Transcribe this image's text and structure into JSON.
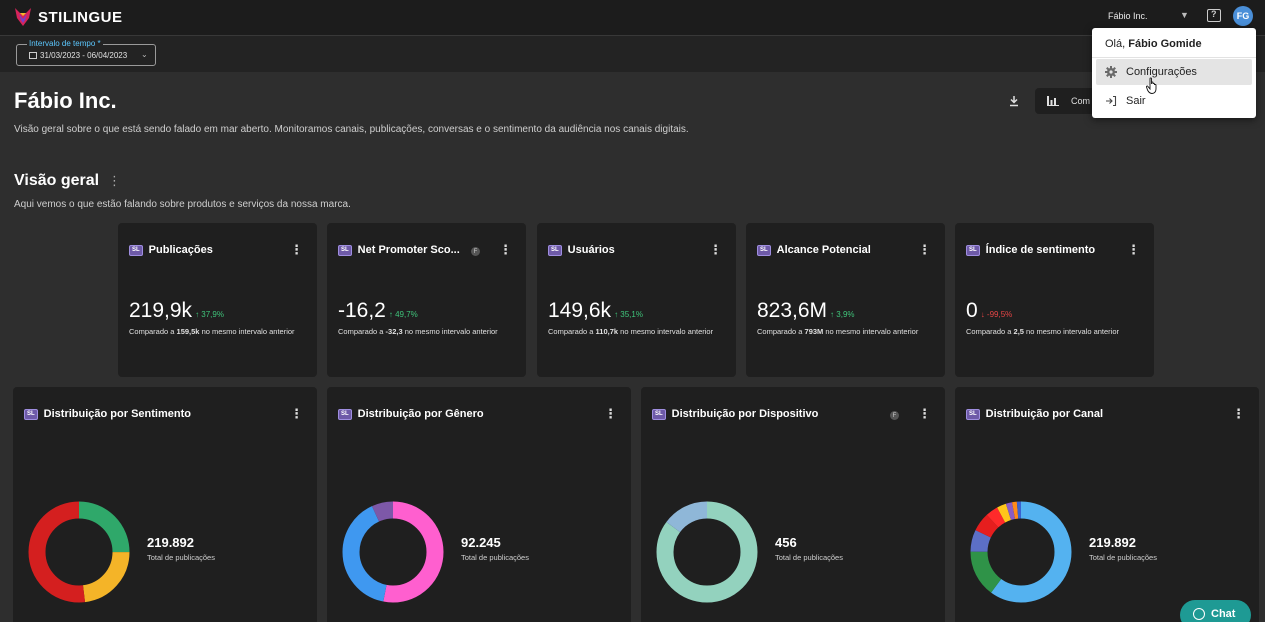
{
  "header": {
    "brand": "STILINGUE",
    "org_selector": "Fábio Inc.",
    "avatar_initials": "FG",
    "avatar_color": "#4a8fd8"
  },
  "filters": {
    "date_label": "Intervalo de tempo *",
    "date_value": "31/03/2023 - 06/04/2023"
  },
  "page": {
    "title": "Fábio Inc.",
    "description": "Visão geral sobre o que está sendo falado em mar aberto. Monitoramos canais, publicações, conversas e o sentimento da audiência nos canais digitais.",
    "compare_label": "Com"
  },
  "section": {
    "title": "Visão geral",
    "description": "Aqui vemos o que estão falando sobre produtos e serviços da nossa marca."
  },
  "badge_text": "SL",
  "f_badge_text": "F",
  "kpis": [
    {
      "title": "Publicações",
      "value": "219,9k",
      "delta": "↑ 37,9%",
      "direction": "up",
      "comp_prefix": "Comparado a ",
      "comp_value": "159,5k",
      "comp_suffix": " no mesmo intervalo anterior"
    },
    {
      "title": "Net Promoter Sco...",
      "value": "-16,2",
      "delta": "↑ 49,7%",
      "direction": "up",
      "comp_prefix": "Comparado a ",
      "comp_value": "-32,3",
      "comp_suffix": " no mesmo intervalo anterior"
    },
    {
      "title": "Usuários",
      "value": "149,6k",
      "delta": "↑ 35,1%",
      "direction": "up",
      "comp_prefix": "Comparado a ",
      "comp_value": "110,7k",
      "comp_suffix": " no mesmo intervalo anterior"
    },
    {
      "title": "Alcance Potencial",
      "value": "823,6M",
      "delta": "↑ 3,9%",
      "direction": "up",
      "comp_prefix": "Comparado a ",
      "comp_value": "793M",
      "comp_suffix": " no mesmo intervalo anterior"
    },
    {
      "title": "Índice de sentimento",
      "value": "0",
      "delta": "↓ -99,5%",
      "direction": "down",
      "comp_prefix": "Comparado a ",
      "comp_value": "2,5",
      "comp_suffix": " no mesmo intervalo anterior"
    }
  ],
  "distributions": [
    {
      "title": "Distribuição por Sentimento",
      "total": "219.892",
      "caption": "Total de publicações",
      "segments": [
        {
          "share": 0.25,
          "color": "#2fa86a"
        },
        {
          "share": 0.23,
          "color": "#f4b428"
        },
        {
          "share": 0.52,
          "color": "#d41f1f"
        }
      ]
    },
    {
      "title": "Distribuição por Gênero",
      "total": "92.245",
      "caption": "Total de publicações",
      "segments": [
        {
          "share": 0.53,
          "color": "#ff5fcf"
        },
        {
          "share": 0.4,
          "color": "#3f98f0"
        },
        {
          "share": 0.07,
          "color": "#7d58a8"
        }
      ]
    },
    {
      "title": "Distribuição por Dispositivo",
      "total": "456",
      "caption": "Total de publicações",
      "segments": [
        {
          "share": 0.85,
          "color": "#93d2be"
        },
        {
          "share": 0.15,
          "color": "#8fb7d8"
        }
      ]
    },
    {
      "title": "Distribuição por Canal",
      "total": "219.892",
      "caption": "Total de publicações",
      "segments": [
        {
          "share": 0.6,
          "color": "#54b2f0"
        },
        {
          "share": 0.15,
          "color": "#2f9348"
        },
        {
          "share": 0.07,
          "color": "#5c6fc6"
        },
        {
          "share": 0.06,
          "color": "#e61e1e"
        },
        {
          "share": 0.04,
          "color": "#ff2a2a"
        },
        {
          "share": 0.03,
          "color": "#ffc61a"
        },
        {
          "share": 0.02,
          "color": "#8a5cc4"
        },
        {
          "share": 0.015,
          "color": "#ff8a1a"
        },
        {
          "share": 0.015,
          "color": "#3a62d0"
        }
      ]
    }
  ],
  "user_menu": {
    "greeting_prefix": "Olá, ",
    "user_name": "Fábio Gomide",
    "items": [
      {
        "label": "Configurações",
        "icon": "gear-icon"
      },
      {
        "label": "Sair",
        "icon": "logout-icon"
      }
    ]
  },
  "chat": {
    "label": "Chat",
    "color": "#1e9a94"
  }
}
